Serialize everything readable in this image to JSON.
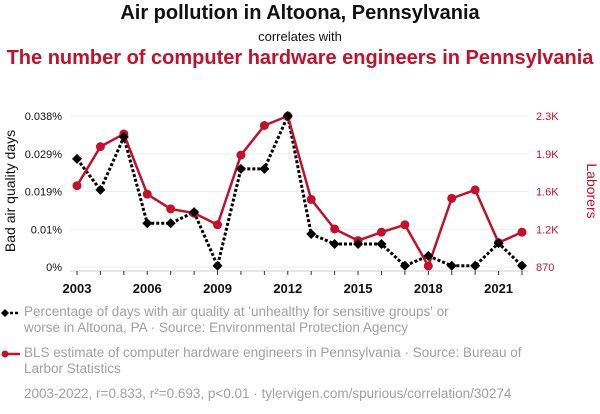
{
  "header": {
    "title": "Air pollution in Altoona, Pennsylvania",
    "connector": "correlates with",
    "subtitle": "The number of computer hardware engineers in Pennsylvania"
  },
  "legend": {
    "series1": "Percentage of days with air quality at 'unhealthy for sensitive groups' or worse in Altoona, PA · Source: Environmental Protection Agency",
    "series2": "BLS estimate of computer hardware engineers in Pennsylvania · Source: Bureau of Larbor Statistics"
  },
  "footer": "2003-2022, r=0.833, r²=0.693, p<0.01 · tylervigen.com/spurious/correlation/30274",
  "colors": {
    "series1": "#000000",
    "series2": "#c0122c",
    "grid": "#eeeeee"
  },
  "chart_data": {
    "type": "line",
    "title": "Air pollution in Altoona, Pennsylvania correlates with The number of computer hardware engineers in Pennsylvania",
    "x": [
      2003,
      2004,
      2005,
      2006,
      2007,
      2008,
      2009,
      2010,
      2011,
      2012,
      2013,
      2014,
      2015,
      2016,
      2017,
      2018,
      2019,
      2020,
      2021,
      2022
    ],
    "xlabel": "",
    "x_ticks": [
      "2003",
      "2006",
      "2009",
      "2012",
      "2015",
      "2018",
      "2021"
    ],
    "x_range": [
      2003,
      2022
    ],
    "y_left": {
      "label": "Bad air quality days",
      "range": [
        0,
        0.038
      ],
      "ticks": [
        "0%",
        "0.01%",
        "0.019%",
        "0.029%",
        "0.038%"
      ],
      "tick_values": [
        0,
        0.0095,
        0.019,
        0.0285,
        0.038
      ]
    },
    "y_right": {
      "label": "Laborers",
      "range": [
        870,
        2300
      ],
      "ticks": [
        "870",
        "1.2K",
        "1.6K",
        "1.9K",
        "2.3K"
      ],
      "tick_values": [
        870,
        1227.5,
        1585,
        1942.5,
        2300
      ]
    },
    "grid": true,
    "series": [
      {
        "name": "Percentage of days with air quality at 'unhealthy for sensitive groups' or worse in Altoona, PA",
        "axis": "left",
        "style": "dotted",
        "marker": "diamond",
        "values": [
          0.0272,
          0.0194,
          0.0327,
          0.011,
          0.011,
          0.0138,
          0.0003,
          0.0247,
          0.0247,
          0.038,
          0.0083,
          0.0058,
          0.0058,
          0.0058,
          0.0003,
          0.0028,
          0.0003,
          0.0003,
          0.006,
          0.0003
        ]
      },
      {
        "name": "BLS estimate of computer hardware engineers in Pennsylvania",
        "axis": "right",
        "style": "solid",
        "marker": "circle",
        "values": [
          1640,
          2010,
          2130,
          1560,
          1420,
          1380,
          1270,
          1930,
          2210,
          2300,
          1510,
          1230,
          1120,
          1200,
          1270,
          880,
          1520,
          1600,
          1100,
          1200
        ]
      }
    ]
  }
}
